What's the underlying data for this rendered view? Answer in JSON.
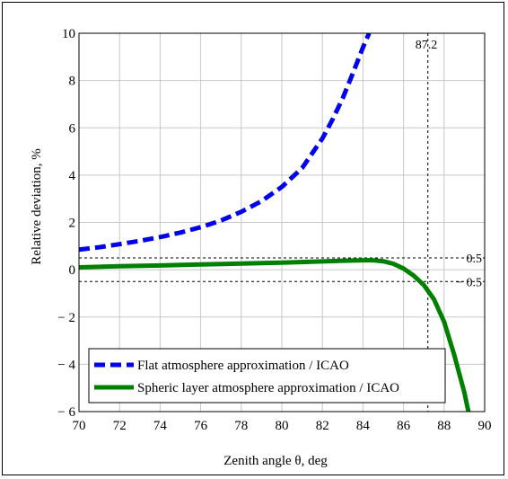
{
  "chart_data": {
    "type": "line",
    "title": "",
    "xlabel": "Zenith angle  θ, deg",
    "ylabel": "Relative deviation,   %",
    "xlim": [
      70,
      90
    ],
    "ylim": [
      -6,
      10
    ],
    "grid": true,
    "xticks": [
      "70",
      "72",
      "74",
      "76",
      "78",
      "80",
      "82",
      "84",
      "86",
      "88",
      "90"
    ],
    "yticks": [
      "10",
      "8",
      "6",
      "4",
      "2",
      "0",
      "− 2",
      "− 4",
      "− 6"
    ],
    "legend_position": "bottom-left",
    "series": [
      {
        "name": "Flat atmosphere approximation / ICAO",
        "color": "#0000ee",
        "style": "dashed",
        "x": [
          70,
          71,
          72,
          73,
          74,
          75,
          76,
          77,
          78,
          79,
          80,
          81,
          82,
          82.5,
          83,
          83.5,
          84,
          84.3
        ],
        "y": [
          0.85,
          0.95,
          1.08,
          1.22,
          1.38,
          1.57,
          1.8,
          2.08,
          2.45,
          2.9,
          3.5,
          4.3,
          5.55,
          6.35,
          7.25,
          8.3,
          9.4,
          10.0
        ]
      },
      {
        "name": "Spheric layer atmosphere approximation / ICAO",
        "color": "#008000",
        "style": "solid",
        "x": [
          70,
          72,
          74,
          76,
          78,
          80,
          82,
          83,
          84,
          84.5,
          85,
          85.5,
          86,
          86.5,
          87,
          87.5,
          88,
          88.5,
          89,
          89.2
        ],
        "y": [
          0.1,
          0.15,
          0.18,
          0.22,
          0.26,
          0.3,
          0.35,
          0.38,
          0.4,
          0.4,
          0.36,
          0.25,
          0.05,
          -0.25,
          -0.65,
          -1.25,
          -2.2,
          -3.6,
          -5.2,
          -6.0
        ]
      }
    ],
    "annotations": [
      {
        "type": "vline",
        "x": 87.2,
        "label": "87.2"
      },
      {
        "type": "hline",
        "y": 0.5,
        "label": "0.5"
      },
      {
        "type": "hline",
        "y": -0.5,
        "label": "− 0.5"
      }
    ]
  }
}
